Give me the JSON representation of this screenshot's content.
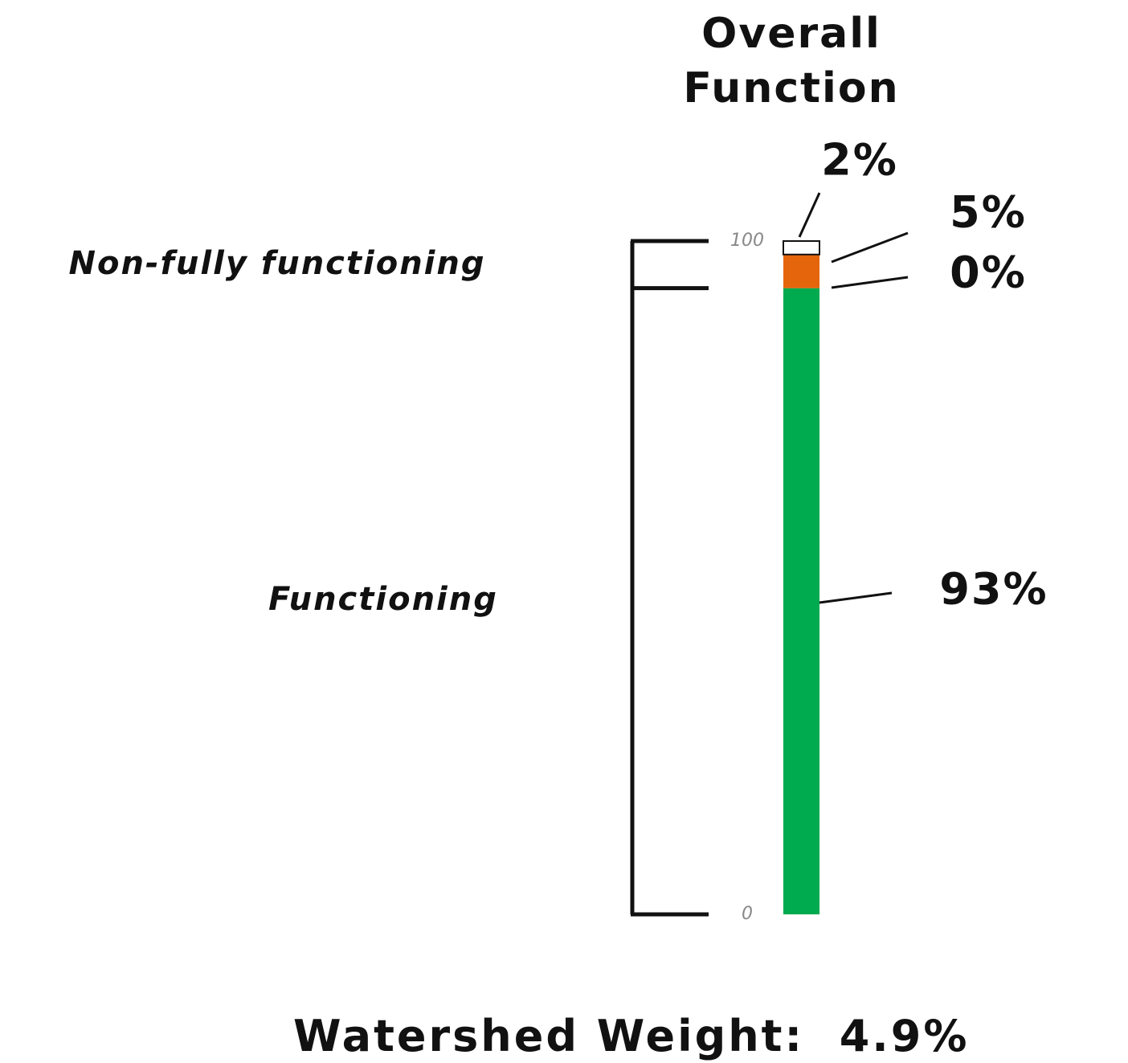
{
  "chart_data": {
    "type": "bar",
    "stacked": true,
    "title": "Overall Function",
    "categories": [
      null
    ],
    "series": [
      {
        "color": "#00aa4f",
        "values": [
          93
        ],
        "value_labels": [
          "93%"
        ]
      },
      {
        "color": "#ffff33",
        "values": [
          0
        ],
        "value_labels": [
          "0%"
        ]
      },
      {
        "color": "#e5650c",
        "values": [
          5
        ],
        "value_labels": [
          "5%"
        ]
      },
      {
        "color": "#ffffff",
        "values": [
          2
        ],
        "value_labels": [
          "2%"
        ]
      }
    ],
    "ylim": [
      0,
      100
    ],
    "yticks": [
      0,
      100
    ],
    "annotations": [
      "Non-fully functioning",
      "Functioning"
    ],
    "footer": "Watershed Weight:  4.9%"
  }
}
